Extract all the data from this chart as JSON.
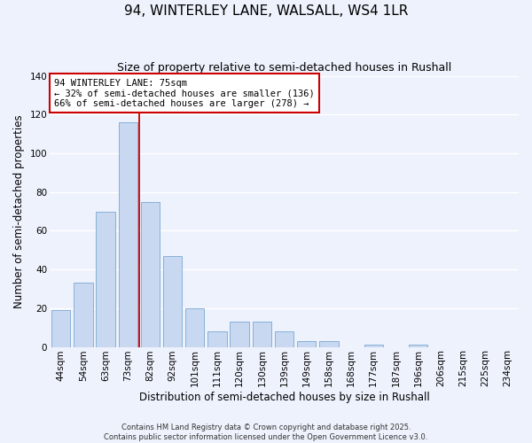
{
  "title": "94, WINTERLEY LANE, WALSALL, WS4 1LR",
  "subtitle": "Size of property relative to semi-detached houses in Rushall",
  "xlabel": "Distribution of semi-detached houses by size in Rushall",
  "ylabel": "Number of semi-detached properties",
  "bar_values": [
    19,
    33,
    70,
    116,
    75,
    47,
    20,
    8,
    13,
    13,
    8,
    3,
    3,
    0,
    1,
    0,
    1,
    0,
    0,
    0,
    0
  ],
  "bin_labels": [
    "44sqm",
    "54sqm",
    "63sqm",
    "73sqm",
    "82sqm",
    "92sqm",
    "101sqm",
    "111sqm",
    "120sqm",
    "130sqm",
    "139sqm",
    "149sqm",
    "158sqm",
    "168sqm",
    "177sqm",
    "187sqm",
    "196sqm",
    "206sqm",
    "215sqm",
    "225sqm",
    "234sqm"
  ],
  "bar_color": "#c8d8f0",
  "bar_edge_color": "#7aa8d4",
  "ylim": [
    0,
    140
  ],
  "yticks": [
    0,
    20,
    40,
    60,
    80,
    100,
    120,
    140
  ],
  "property_size_bin": 3,
  "property_label": "94 WINTERLEY LANE: 75sqm",
  "pct_smaller": 32,
  "pct_larger": 66,
  "n_smaller": 136,
  "n_larger": 278,
  "vline_color": "#cc0000",
  "annotation_box_color": "#cc0000",
  "footer1": "Contains HM Land Registry data © Crown copyright and database right 2025.",
  "footer2": "Contains public sector information licensed under the Open Government Licence v3.0.",
  "background_color": "#eef2fc",
  "grid_color": "#ffffff",
  "tick_label_fontsize": 7.5,
  "title_fontsize": 11,
  "subtitle_fontsize": 9,
  "axis_label_fontsize": 8.5,
  "footer_fontsize": 6.0
}
